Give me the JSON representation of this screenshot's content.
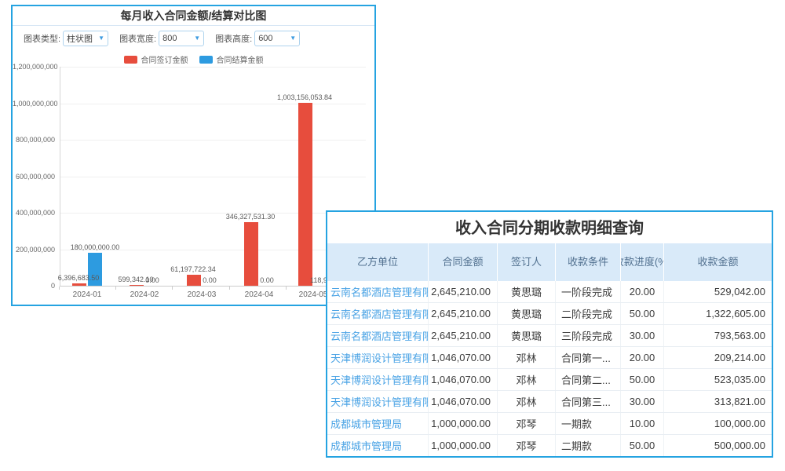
{
  "colors": {
    "window_border": "#25a3e1",
    "bar_red": "#e74d3d",
    "bar_blue": "#2d9be0",
    "header_bg": "#d9eaf9",
    "header_text": "#51708f",
    "link_blue": "#4aa3e5"
  },
  "chart_window": {
    "title": "每月收入合同金额/结算对比图",
    "controls": [
      {
        "label": "图表类型:",
        "value": "柱状图"
      },
      {
        "label": "图表宽度:",
        "value": "800"
      },
      {
        "label": "图表高度:",
        "value": "600"
      }
    ],
    "legend": [
      {
        "label": "合同签订金额",
        "color": "#e74d3d"
      },
      {
        "label": "合同结算金额",
        "color": "#2d9be0"
      }
    ],
    "chart_data": {
      "type": "bar",
      "title": "每月收入合同金额/结算对比图",
      "categories": [
        "2024-01",
        "2024-02",
        "2024-03",
        "2024-04",
        "2024-05"
      ],
      "series": [
        {
          "name": "合同签订金额",
          "color": "#e74d3d",
          "values": [
            6396683.5,
            599342.1,
            61197722.34,
            346327531.3,
            1003156053.84
          ],
          "labels": [
            "6,396,683.50",
            "599,342.10",
            "61,197,722.34",
            "346,327,531.30",
            "1,003,156,053.84"
          ]
        },
        {
          "name": "合同结算金额",
          "color": "#2d9be0",
          "values": [
            180000000.0,
            0.0,
            0.0,
            0.0,
            null
          ],
          "labels": [
            "180,000,000.00",
            "0.00",
            "0.00",
            "0.00",
            "118,9"
          ]
        }
      ],
      "ylim": [
        0,
        1200000000
      ],
      "y_ticks": [
        "1,200,000,000",
        "1,000,000,000",
        "800,000,000",
        "600,000,000",
        "400,000,000",
        "200,000,000",
        "0"
      ],
      "grid": true,
      "legend_position": "top"
    }
  },
  "table_window": {
    "title": "收入合同分期收款明细查询",
    "columns": [
      "乙方单位",
      "合同金额",
      "签订人",
      "收款条件",
      "收款进度(%)",
      "收款金额"
    ],
    "rows": [
      [
        "云南名都酒店管理有限公",
        "2,645,210.00",
        "黄思璐",
        "一阶段完成",
        "20.00",
        "529,042.00"
      ],
      [
        "云南名都酒店管理有限公",
        "2,645,210.00",
        "黄思璐",
        "二阶段完成",
        "50.00",
        "1,322,605.00"
      ],
      [
        "云南名都酒店管理有限公",
        "2,645,210.00",
        "黄思璐",
        "三阶段完成",
        "30.00",
        "793,563.00"
      ],
      [
        "天津博润设计管理有限公",
        "1,046,070.00",
        "邓林",
        "合同第一...",
        "20.00",
        "209,214.00"
      ],
      [
        "天津博润设计管理有限公",
        "1,046,070.00",
        "邓林",
        "合同第二...",
        "50.00",
        "523,035.00"
      ],
      [
        "天津博润设计管理有限公",
        "1,046,070.00",
        "邓林",
        "合同第三...",
        "30.00",
        "313,821.00"
      ],
      [
        "成都城市管理局",
        "1,000,000.00",
        "邓琴",
        "一期款",
        "10.00",
        "100,000.00"
      ],
      [
        "成都城市管理局",
        "1,000,000.00",
        "邓琴",
        "二期款",
        "50.00",
        "500,000.00"
      ]
    ]
  }
}
